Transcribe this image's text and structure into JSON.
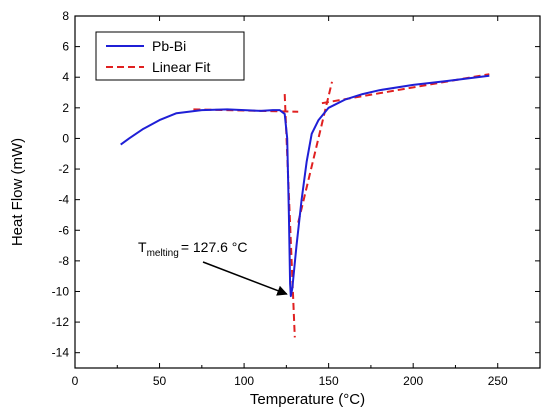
{
  "chart_data": {
    "type": "line",
    "title": "",
    "xlabel": "Temperature (°C)",
    "ylabel": "Heat Flow (mW)",
    "xlim": [
      0,
      275
    ],
    "ylim": [
      -15,
      8
    ],
    "x_ticks": [
      0,
      50,
      100,
      150,
      200,
      250
    ],
    "y_ticks": [
      8,
      6,
      4,
      2,
      0,
      -2,
      -4,
      -6,
      -8,
      -10,
      -12,
      -14
    ],
    "legend": {
      "position": "top-left",
      "box": true
    },
    "grid": false,
    "series": [
      {
        "name": "Pb-Bi",
        "color": "#1f1fd6",
        "style": "solid",
        "x": [
          27,
          32,
          40,
          50,
          60,
          75,
          90,
          100,
          110,
          117,
          121,
          124,
          125.5,
          126.5,
          127.2,
          127.6,
          128.5,
          131,
          134,
          137,
          140,
          144,
          150,
          160,
          170,
          180,
          200,
          220,
          245
        ],
        "y": [
          -0.4,
          0.0,
          0.6,
          1.2,
          1.65,
          1.85,
          1.9,
          1.85,
          1.8,
          1.85,
          1.85,
          1.6,
          0.0,
          -5.0,
          -9.5,
          -10.3,
          -9.8,
          -7.0,
          -4.0,
          -1.5,
          0.3,
          1.2,
          2.0,
          2.55,
          2.9,
          3.15,
          3.5,
          3.75,
          4.1
        ]
      },
      {
        "name": "Linear Fit",
        "color": "#e02020",
        "style": "dashed",
        "segments": [
          {
            "x": [
              70,
              132
            ],
            "y": [
              1.9,
              1.75
            ]
          },
          {
            "x": [
              124,
              130
            ],
            "y": [
              2.9,
              -13
            ]
          },
          {
            "x": [
              132,
              152
            ],
            "y": [
              -5.5,
              3.7
            ]
          },
          {
            "x": [
              146,
              245
            ],
            "y": [
              2.3,
              4.2
            ]
          }
        ]
      }
    ],
    "annotations": [
      {
        "text_main": "T",
        "text_sub": "melting",
        "text_rest": "= 127.6 °C",
        "arrow_to": {
          "x": 127.6,
          "y": -10.3
        }
      }
    ],
    "colors": {
      "axis": "#000000",
      "background": "#ffffff"
    }
  }
}
